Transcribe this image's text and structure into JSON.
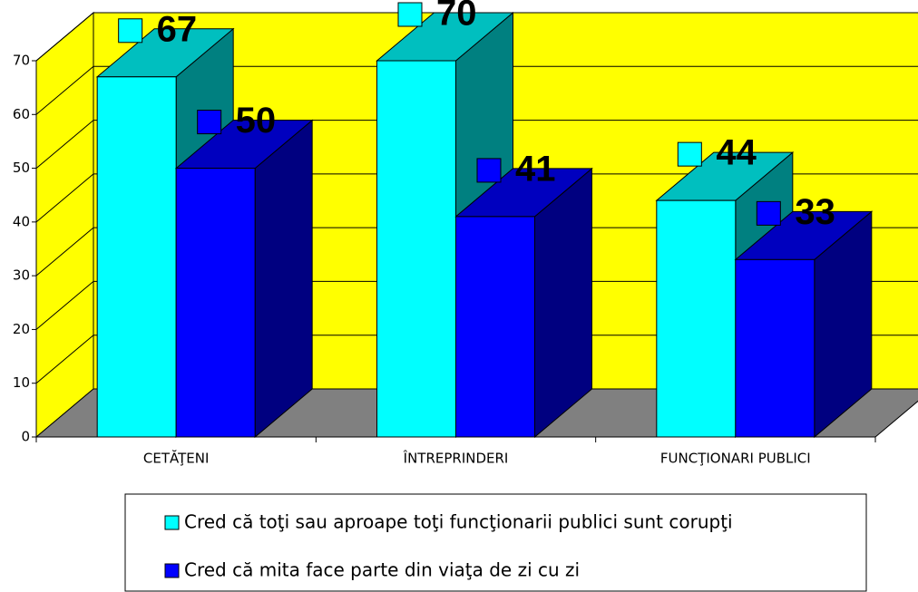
{
  "chart_data": {
    "type": "bar3d",
    "categories": [
      "CETĂŢENI",
      "ÎNTREPRINDERI",
      "FUNCŢIONARI PUBLICI"
    ],
    "series": [
      {
        "name": "Cred că toţi sau aproape toţi funcţionarii publici sunt corupţi",
        "color": "#00ffff",
        "values": [
          67,
          70,
          44
        ]
      },
      {
        "name": "Cred că mita face parte din viaţa de zi cu zi",
        "color": "#0000ff",
        "values": [
          50,
          41,
          33
        ]
      }
    ],
    "ylim": [
      0,
      70
    ],
    "yticks": [
      0,
      10,
      20,
      30,
      40,
      50,
      60,
      70
    ],
    "grid": true,
    "wall_color": "#ffff00",
    "floor_color": "#808080"
  }
}
